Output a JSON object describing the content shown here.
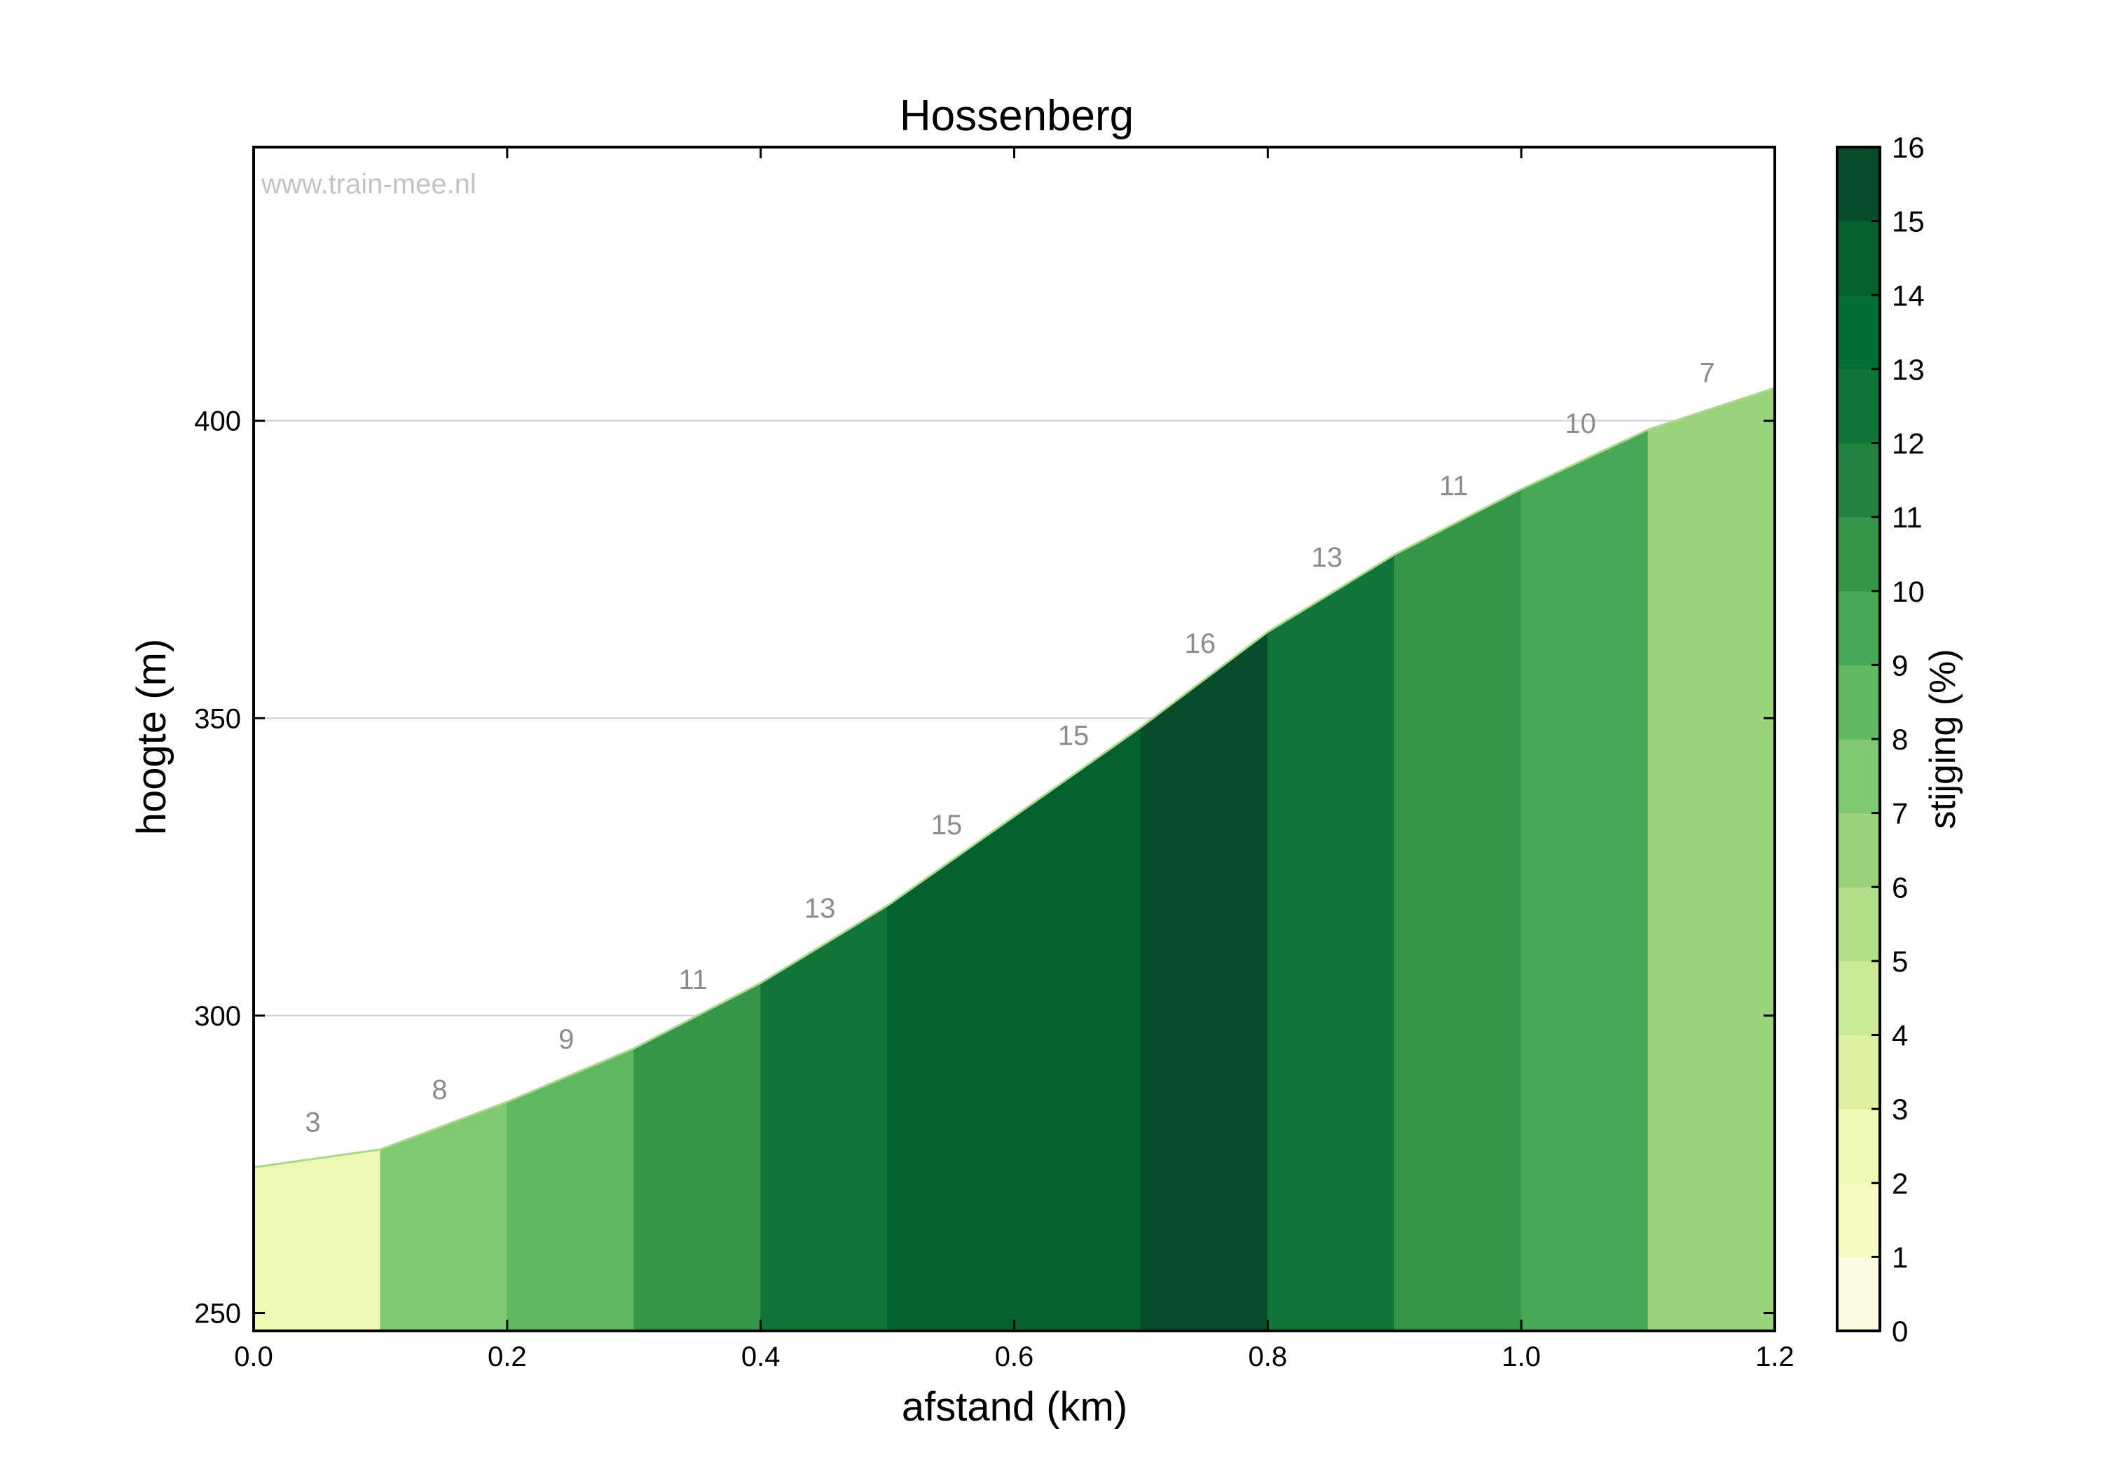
{
  "watermark": "www.train-mee.nl",
  "chart_data": {
    "type": "area",
    "title": "Hossenberg",
    "xlabel": "afstand (km)",
    "ylabel": "hoogte (m)",
    "xlim": [
      0.0,
      1.2
    ],
    "ylim": [
      247,
      446
    ],
    "x_ticks": [
      0.0,
      0.2,
      0.4,
      0.6,
      0.8,
      1.0,
      1.2
    ],
    "x_tick_labels": [
      "0.0",
      "0.2",
      "0.4",
      "0.6",
      "0.8",
      "1.0",
      "1.2"
    ],
    "y_ticks": [
      250,
      300,
      350,
      400
    ],
    "y_tick_labels": [
      "250",
      "300",
      "350",
      "400"
    ],
    "grid": "horizontal",
    "x": [
      0.0,
      0.1,
      0.2,
      0.3,
      0.4,
      0.5,
      0.6,
      0.7,
      0.8,
      0.9,
      1.0,
      1.1,
      1.2
    ],
    "elevation": [
      274.5,
      277.5,
      285.5,
      294.5,
      305.5,
      318.5,
      333.5,
      348.5,
      364.5,
      377.5,
      388.5,
      398.5,
      405.5
    ],
    "segments": [
      {
        "from": 0.0,
        "to": 0.1,
        "gradient": 3,
        "label": "3"
      },
      {
        "from": 0.1,
        "to": 0.2,
        "gradient": 8,
        "label": "8"
      },
      {
        "from": 0.2,
        "to": 0.3,
        "gradient": 9,
        "label": "9"
      },
      {
        "from": 0.3,
        "to": 0.4,
        "gradient": 11,
        "label": "11"
      },
      {
        "from": 0.4,
        "to": 0.5,
        "gradient": 13,
        "label": "13"
      },
      {
        "from": 0.5,
        "to": 0.6,
        "gradient": 15,
        "label": "15"
      },
      {
        "from": 0.6,
        "to": 0.7,
        "gradient": 15,
        "label": "15"
      },
      {
        "from": 0.7,
        "to": 0.8,
        "gradient": 16,
        "label": "16"
      },
      {
        "from": 0.8,
        "to": 0.9,
        "gradient": 13,
        "label": "13"
      },
      {
        "from": 0.9,
        "to": 1.0,
        "gradient": 11,
        "label": "11"
      },
      {
        "from": 1.0,
        "to": 1.1,
        "gradient": 10,
        "label": "10"
      },
      {
        "from": 1.1,
        "to": 1.2,
        "gradient": 7,
        "label": "7"
      }
    ],
    "colorbar": {
      "label": "stijging (%)",
      "min": 0,
      "max": 16,
      "ticks": [
        0,
        1,
        2,
        3,
        4,
        5,
        6,
        7,
        8,
        9,
        10,
        11,
        12,
        13,
        14,
        15,
        16
      ],
      "tick_labels": [
        "0",
        "1",
        "2",
        "3",
        "4",
        "5",
        "6",
        "7",
        "8",
        "9",
        "10",
        "11",
        "12",
        "13",
        "14",
        "15",
        "16"
      ],
      "colors": [
        "#fcfbe1",
        "#f7fbc2",
        "#eef8b5",
        "#dff0a0",
        "#caea97",
        "#b4de88",
        "#9bd27c",
        "#7ec972",
        "#61b863",
        "#47a956",
        "#35964a",
        "#238140",
        "#117539",
        "#046d33",
        "#02612f",
        "#074d2c"
      ]
    }
  }
}
